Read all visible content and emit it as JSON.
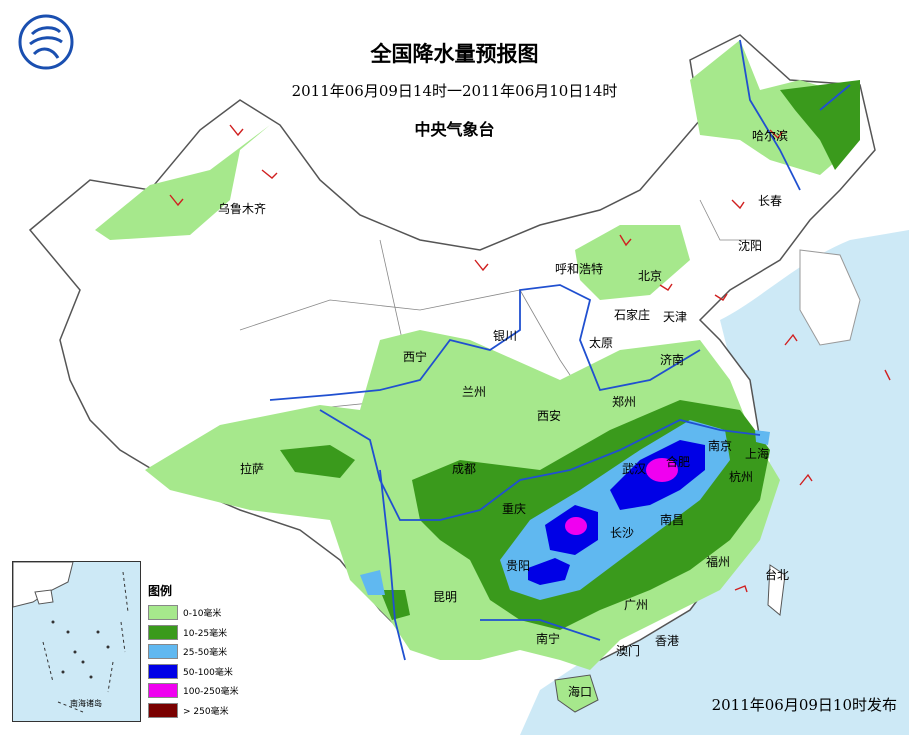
{
  "title": "全国降水量预报图",
  "period": "2011年06月09日14时一2011年06月10日14时",
  "issuer": "中央气象台",
  "publish": "2011年06月09日10时发布",
  "legend": {
    "title": "图例",
    "items": [
      {
        "label": "0-10毫米",
        "color": "#a6e88c"
      },
      {
        "label": "10-25毫米",
        "color": "#3a9a1c"
      },
      {
        "label": "25-50毫米",
        "color": "#60b8f0"
      },
      {
        "label": "50-100毫米",
        "color": "#0000e6"
      },
      {
        "label": "100-250毫米",
        "color": "#f000f0"
      },
      {
        "label": "> 250毫米",
        "color": "#7a0000"
      }
    ]
  },
  "inset_label": "南海诸岛",
  "cities": [
    {
      "id": "wulumuqi",
      "name": "乌鲁木齐"
    },
    {
      "id": "haerbin",
      "name": "哈尔滨"
    },
    {
      "id": "changchun",
      "name": "长春"
    },
    {
      "id": "shenyang",
      "name": "沈阳"
    },
    {
      "id": "huhehaote",
      "name": "呼和浩特"
    },
    {
      "id": "beijing",
      "name": "北京"
    },
    {
      "id": "tianjin",
      "name": "天津"
    },
    {
      "id": "shijiazhuang",
      "name": "石家庄"
    },
    {
      "id": "yinchuan",
      "name": "银川"
    },
    {
      "id": "taiyuan",
      "name": "太原"
    },
    {
      "id": "jinan",
      "name": "济南"
    },
    {
      "id": "xining",
      "name": "西宁"
    },
    {
      "id": "lanzhou",
      "name": "兰州"
    },
    {
      "id": "xian",
      "name": "西安"
    },
    {
      "id": "zhengzhou",
      "name": "郑州"
    },
    {
      "id": "nanjing",
      "name": "南京"
    },
    {
      "id": "shanghai",
      "name": "上海"
    },
    {
      "id": "hefei",
      "name": "合肥"
    },
    {
      "id": "wuhan",
      "name": "武汉"
    },
    {
      "id": "hangzhou",
      "name": "杭州"
    },
    {
      "id": "lasa",
      "name": "拉萨"
    },
    {
      "id": "chengdu",
      "name": "成都"
    },
    {
      "id": "chongqing",
      "name": "重庆"
    },
    {
      "id": "changsha",
      "name": "长沙"
    },
    {
      "id": "nanchang",
      "name": "南昌"
    },
    {
      "id": "guiyang",
      "name": "贵阳"
    },
    {
      "id": "fuzhou",
      "name": "福州"
    },
    {
      "id": "taibei",
      "name": "台北"
    },
    {
      "id": "kunming",
      "name": "昆明"
    },
    {
      "id": "guangzhou",
      "name": "广州"
    },
    {
      "id": "nanning",
      "name": "南宁"
    },
    {
      "id": "xianggang",
      "name": "香港"
    },
    {
      "id": "aomen",
      "name": "澳门"
    },
    {
      "id": "haikou",
      "name": "海口"
    }
  ]
}
